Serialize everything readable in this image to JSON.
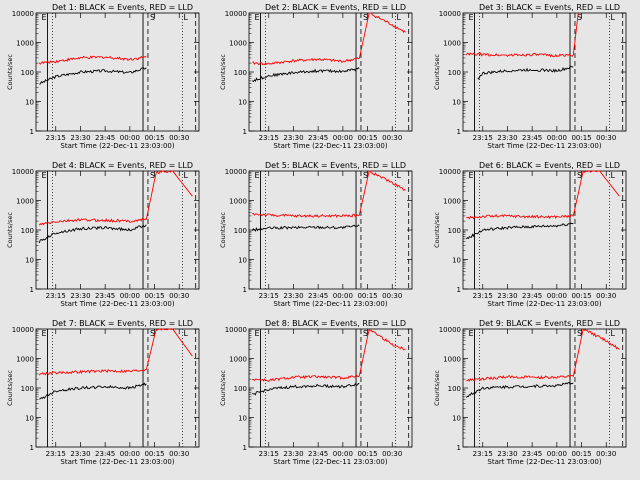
{
  "figure": {
    "background": "#e6e6e6",
    "colors": {
      "events": "#000000",
      "lld": "#ff0000",
      "axes": "#000000"
    },
    "panel_title_template": "Det {n}: BLACK = Events, RED = LLD",
    "xlabel": "Start Time (22-Dec-11 23:03:00)",
    "ylabel": "Counts/sec",
    "x_tick_labels": [
      "23:15",
      "23:30",
      "23:45",
      "00:00",
      "00:15",
      "00:30"
    ],
    "y_tick_labels": [
      "1",
      "10",
      "100",
      "1000",
      "10000"
    ],
    "markers": {
      "left": "E",
      "right": "L",
      "circle": "S"
    }
  },
  "chart_data": [
    {
      "type": "line",
      "detector": 1,
      "title": "Det 1: BLACK = Events, RED = LLD",
      "yscale": "log",
      "ylim": [
        1,
        10000
      ],
      "series": [
        {
          "name": "Events",
          "color": "#000000",
          "x": [
            "23:05",
            "23:15",
            "23:30",
            "23:45",
            "00:00",
            "00:10"
          ],
          "values": [
            40,
            70,
            100,
            110,
            95,
            140
          ]
        },
        {
          "name": "LLD",
          "color": "#ff0000",
          "x": [
            "23:05",
            "23:15",
            "23:30",
            "23:45",
            "00:00",
            "00:10"
          ],
          "values": [
            200,
            230,
            300,
            320,
            270,
            320
          ]
        }
      ]
    },
    {
      "type": "line",
      "detector": 2,
      "title": "Det 2: BLACK = Events, RED = LLD",
      "yscale": "log",
      "ylim": [
        1,
        10000
      ],
      "series": [
        {
          "name": "Events",
          "color": "#000000",
          "x": [
            "23:05",
            "23:15",
            "23:30",
            "23:45",
            "00:00",
            "00:10"
          ],
          "values": [
            50,
            75,
            95,
            110,
            105,
            130
          ]
        },
        {
          "name": "LLD",
          "color": "#ff0000",
          "x": [
            "23:05",
            "23:15",
            "23:30",
            "23:45",
            "00:00",
            "00:10",
            "00:16",
            "00:30",
            "00:38"
          ],
          "values": [
            200,
            190,
            240,
            270,
            230,
            290,
            10000,
            4000,
            2200
          ]
        }
      ]
    },
    {
      "type": "line",
      "detector": 3,
      "title": "Det 3: BLACK = Events, RED = LLD",
      "yscale": "log",
      "ylim": [
        1,
        10000
      ],
      "series": [
        {
          "name": "Events",
          "color": "#000000",
          "x": [
            "23:12",
            "23:15",
            "23:30",
            "23:45",
            "00:00",
            "00:10"
          ],
          "values": [
            60,
            90,
            110,
            120,
            110,
            150
          ]
        },
        {
          "name": "LLD",
          "color": "#ff0000",
          "x": [
            "23:05",
            "23:15",
            "23:30",
            "23:45",
            "00:00",
            "00:10",
            "00:13"
          ],
          "values": [
            400,
            390,
            370,
            390,
            360,
            380,
            10000
          ]
        }
      ]
    },
    {
      "type": "line",
      "detector": 4,
      "title": "Det 4: BLACK = Events, RED = LLD",
      "yscale": "log",
      "ylim": [
        1,
        10000
      ],
      "series": [
        {
          "name": "Events",
          "color": "#000000",
          "x": [
            "23:05",
            "23:15",
            "23:30",
            "23:45",
            "00:00",
            "00:10"
          ],
          "values": [
            40,
            80,
            110,
            120,
            100,
            150
          ]
        },
        {
          "name": "LLD",
          "color": "#ff0000",
          "x": [
            "23:05",
            "23:15",
            "23:30",
            "23:45",
            "00:00",
            "00:10",
            "00:16",
            "00:26",
            "00:38"
          ],
          "values": [
            150,
            190,
            220,
            210,
            200,
            230,
            9000,
            10000,
            1400
          ]
        }
      ]
    },
    {
      "type": "line",
      "detector": 5,
      "title": "Det 5: BLACK = Events, RED = LLD",
      "yscale": "log",
      "ylim": [
        1,
        10000
      ],
      "series": [
        {
          "name": "Events",
          "color": "#000000",
          "x": [
            "23:05",
            "23:15",
            "23:30",
            "23:45",
            "00:00",
            "00:10"
          ],
          "values": [
            100,
            115,
            120,
            125,
            120,
            140
          ]
        },
        {
          "name": "LLD",
          "color": "#ff0000",
          "x": [
            "23:05",
            "23:15",
            "23:30",
            "23:45",
            "00:00",
            "00:10",
            "00:16",
            "00:30",
            "00:38"
          ],
          "values": [
            350,
            320,
            300,
            300,
            300,
            320,
            10000,
            4000,
            2200
          ]
        }
      ]
    },
    {
      "type": "line",
      "detector": 6,
      "title": "Det 6: BLACK = Events, RED = LLD",
      "yscale": "log",
      "ylim": [
        1,
        10000
      ],
      "series": [
        {
          "name": "Events",
          "color": "#000000",
          "x": [
            "23:05",
            "23:15",
            "23:30",
            "23:45",
            "00:00",
            "00:10"
          ],
          "values": [
            50,
            100,
            120,
            130,
            140,
            170
          ]
        },
        {
          "name": "LLD",
          "color": "#ff0000",
          "x": [
            "23:05",
            "23:15",
            "23:30",
            "23:45",
            "00:00",
            "00:10",
            "00:16",
            "00:26",
            "00:38"
          ],
          "values": [
            250,
            290,
            300,
            280,
            280,
            300,
            10000,
            10000,
            1400
          ]
        }
      ]
    },
    {
      "type": "line",
      "detector": 7,
      "title": "Det 7: BLACK = Events, RED = LLD",
      "yscale": "log",
      "ylim": [
        1,
        10000
      ],
      "series": [
        {
          "name": "Events",
          "color": "#000000",
          "x": [
            "23:05",
            "23:15",
            "23:30",
            "23:45",
            "00:00",
            "00:10"
          ],
          "values": [
            40,
            80,
            100,
            110,
            100,
            140
          ]
        },
        {
          "name": "LLD",
          "color": "#ff0000",
          "x": [
            "23:05",
            "23:15",
            "23:30",
            "23:45",
            "00:00",
            "00:10",
            "00:16",
            "00:26",
            "00:38"
          ],
          "values": [
            300,
            330,
            350,
            380,
            370,
            420,
            10000,
            10000,
            1200
          ]
        }
      ]
    },
    {
      "type": "line",
      "detector": 8,
      "title": "Det 8: BLACK = Events, RED = LLD",
      "yscale": "log",
      "ylim": [
        1,
        10000
      ],
      "series": [
        {
          "name": "Events",
          "color": "#000000",
          "x": [
            "23:05",
            "23:15",
            "23:30",
            "23:45",
            "00:00",
            "00:10"
          ],
          "values": [
            60,
            90,
            110,
            120,
            110,
            140
          ]
        },
        {
          "name": "LLD",
          "color": "#ff0000",
          "x": [
            "23:05",
            "23:15",
            "23:30",
            "23:45",
            "00:00",
            "00:10",
            "00:16",
            "00:30",
            "00:38"
          ],
          "values": [
            200,
            180,
            230,
            240,
            220,
            260,
            10000,
            3000,
            2000
          ]
        }
      ]
    },
    {
      "type": "line",
      "detector": 9,
      "title": "Det 9: BLACK = Events, RED = LLD",
      "yscale": "log",
      "ylim": [
        1,
        10000
      ],
      "series": [
        {
          "name": "Events",
          "color": "#000000",
          "x": [
            "23:05",
            "23:15",
            "23:30",
            "23:45",
            "00:00",
            "00:10"
          ],
          "values": [
            50,
            100,
            110,
            115,
            120,
            150
          ]
        },
        {
          "name": "LLD",
          "color": "#ff0000",
          "x": [
            "23:05",
            "23:15",
            "23:30",
            "23:45",
            "00:00",
            "00:10",
            "00:16",
            "00:30",
            "00:38"
          ],
          "values": [
            180,
            200,
            240,
            230,
            230,
            250,
            10000,
            4000,
            2000
          ]
        }
      ]
    }
  ]
}
